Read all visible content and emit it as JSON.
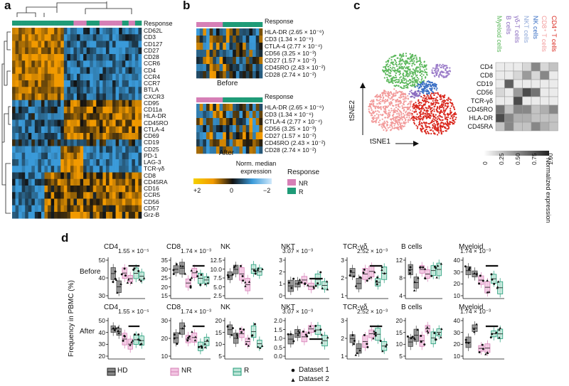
{
  "panel_labels": {
    "a": "a",
    "b": "b",
    "c": "c",
    "d": "d"
  },
  "colors": {
    "NR": "#d67fb6",
    "R": "#1f9b77",
    "HD": "#444444",
    "heat_high": "#f29a00",
    "heat_mid": "#111111",
    "heat_low": "#3a9ad9"
  },
  "panel_a": {
    "response_label": "Response",
    "markers": [
      "CD62L",
      "CD3",
      "CD127",
      "CD27",
      "CD28",
      "CCR6",
      "CD4",
      "CCR4",
      "CCR7",
      "BTLA",
      "CXCR3",
      "CD95",
      "CD11a",
      "HLA-DR",
      "CD45RO",
      "CTLA-4",
      "CD69",
      "CD19",
      "CD25",
      "PD-1",
      "LAG-3",
      "TCR-γδ",
      "CD8",
      "CD45RA",
      "CD16",
      "CCR5",
      "CD56",
      "CD57",
      "Grz-B"
    ]
  },
  "panel_b": {
    "response_label": "Response",
    "before_markers": [
      "HLA-DR (2.65 × 10⁻⁶)",
      "CD3 (1.34 × 10⁻⁶)",
      "CTLA-4 (2.77 × 10⁻⁴)",
      "CD56 (3.25 × 10⁻³)",
      "CD27 (1.57 × 10⁻²)",
      "CD45RO (2.43 × 10⁻²)",
      "CD28 (2.74 × 10⁻²)"
    ],
    "after_markers": [
      "HLA-DR (2.65 × 10⁻⁶)",
      "CD3 (1.34 × 10⁻⁶)",
      "CTLA-4 (2.77 × 10⁻⁴)",
      "CD56 (3.25 × 10⁻³)",
      "CD27 (1.57 × 10⁻²)",
      "CD45RO (2.43 × 10⁻²)",
      "CD28 (2.74 × 10⁻²)"
    ],
    "before_label": "Before",
    "after_label": "After",
    "scale_title": "Norm. median\nexpression",
    "scale_ticks": [
      "+2",
      "0",
      "−2"
    ],
    "legend_title": "Response",
    "legend_items": [
      "NR",
      "R"
    ]
  },
  "panel_c": {
    "axis_x": "tSNE1",
    "axis_y": "tSNE2",
    "populations": [
      "Myeloid cells",
      "B cells",
      "γδ-T cells",
      "NKT cells",
      "NK cells",
      "CD8⁺ T cells",
      "CD4⁺ T cells"
    ],
    "population_colors": [
      "#5cb85c",
      "#8a6bbf",
      "#8a6bbf",
      "#8fa8d8",
      "#3a6fc4",
      "#f29a9a",
      "#d9261c"
    ],
    "markers": [
      "CD4",
      "CD8",
      "CD19",
      "CD56",
      "TCR-γδ",
      "CD45RO",
      "HLA-DR",
      "CD45RA"
    ],
    "scale_ticks": [
      "0",
      "0.25",
      "0.50",
      "0.75",
      "1.00"
    ],
    "scale_title": "Normalized expression"
  },
  "panel_d": {
    "ylabel": "Frequency in PBMC (%)",
    "row_labels": [
      "Before",
      "After"
    ],
    "before": [
      {
        "title": "CD4",
        "pval": "1.55 × 10⁻⁵",
        "yticks": [
          "30",
          "40",
          "50"
        ]
      },
      {
        "title": "CD8",
        "pval": "1.74 × 10⁻³",
        "yticks": [
          "15",
          "20",
          "25",
          "30",
          "35"
        ]
      },
      {
        "title": "NK",
        "pval": "",
        "yticks": [
          "2.5",
          "5.0",
          "7.5",
          "10.0",
          "12.5"
        ]
      },
      {
        "title": "NKT",
        "pval": "3.07 × 10⁻³",
        "yticks": [
          "0",
          "1",
          "2",
          "3"
        ]
      },
      {
        "title": "TCR-γδ",
        "pval": "2.52 × 10⁻³",
        "yticks": [
          "1",
          "2",
          "3"
        ]
      },
      {
        "title": "B cells",
        "pval": "",
        "yticks": [
          "4",
          "8",
          "12"
        ]
      },
      {
        "title": "Myeloid",
        "pval": "1.74 × 10⁻³",
        "yticks": [
          "10",
          "20",
          "30",
          "40"
        ]
      }
    ],
    "after": [
      {
        "title": "CD4",
        "pval": "1.55 × 10⁻⁵",
        "yticks": [
          "20",
          "30",
          "40",
          "50"
        ]
      },
      {
        "title": "CD8",
        "pval": "1.74 × 10⁻³",
        "yticks": [
          "10",
          "20",
          "30"
        ]
      },
      {
        "title": "NK",
        "pval": "",
        "yticks": [
          "5",
          "10",
          "15",
          "20"
        ]
      },
      {
        "title": "NKT",
        "pval": "3.07 × 10⁻³",
        "yticks": [
          "0.0",
          "0.5",
          "1.0",
          "1.5",
          "2.0"
        ]
      },
      {
        "title": "TCR-γδ",
        "pval": "2.52 × 10⁻³",
        "yticks": [
          "1",
          "2",
          "3"
        ]
      },
      {
        "title": "B cells",
        "pval": "",
        "yticks": [
          "5",
          "10",
          "15",
          "20"
        ]
      },
      {
        "title": "Myeloid",
        "pval": "1.74 × 10⁻³",
        "yticks": [
          "10",
          "20",
          "30",
          "40"
        ]
      }
    ],
    "legend": {
      "groups": [
        "HD",
        "NR",
        "R"
      ],
      "datasets": [
        "Dataset 1",
        "Dataset 2"
      ]
    }
  }
}
